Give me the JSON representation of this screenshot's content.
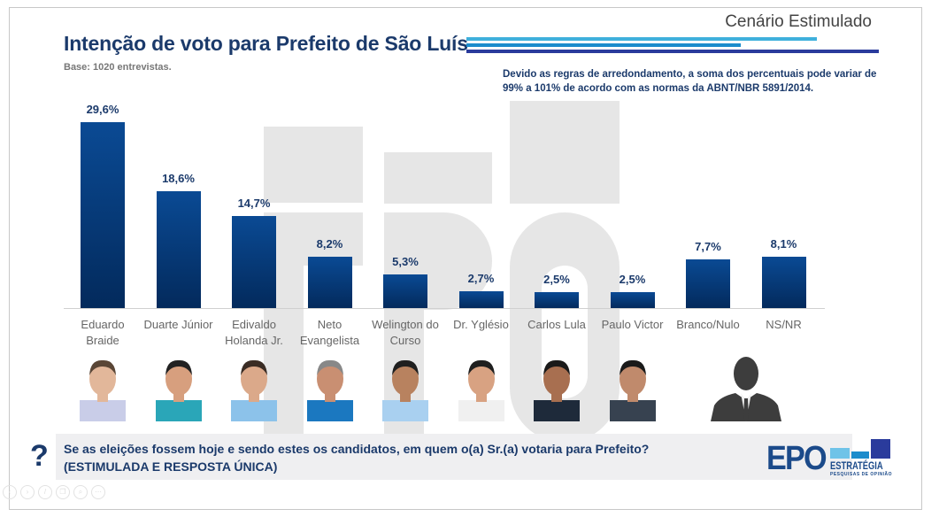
{
  "header": {
    "title": "Intenção de voto para Prefeito de São Luís",
    "scenario": "Cenário Estimulado",
    "base": "Base: 1020 entrevistas.",
    "note": "Devido as regras de arredondamento, a soma dos percentuais pode variar de 99% a 101% de acordo com as normas da ABNT/NBR 5891/2014."
  },
  "colors": {
    "title": "#1b3a6b",
    "bar_top": "#0a4a94",
    "bar_bottom": "#032a5c",
    "line_light": "#3fb0dc",
    "line_mid": "#1c8ccc",
    "line_dark": "#2a3b9c"
  },
  "chart_data": {
    "type": "bar",
    "title": "Intenção de voto para Prefeito de São Luís",
    "xlabel": "",
    "ylabel": "",
    "ylim": [
      0,
      30
    ],
    "grid": false,
    "categories": [
      "Eduardo Braide",
      "Duarte Júnior",
      "Edivaldo Holanda Jr.",
      "Neto Evangelista",
      "Welington do Curso",
      "Dr. Yglésio",
      "Carlos Lula",
      "Paulo Victor",
      "Branco/Nulo",
      "NS/NR"
    ],
    "values": [
      29.6,
      18.6,
      14.7,
      8.2,
      5.3,
      2.7,
      2.5,
      2.5,
      7.7,
      8.1
    ],
    "labels": [
      "29,6%",
      "18,6%",
      "14,7%",
      "8,2%",
      "5,3%",
      "2,7%",
      "2,5%",
      "2,5%",
      "7,7%",
      "8,1%"
    ],
    "category_lines": [
      [
        "Eduardo",
        "Braide"
      ],
      [
        "Duarte Júnior"
      ],
      [
        "Edivaldo",
        "Holanda Jr."
      ],
      [
        "Neto",
        "Evangelista"
      ],
      [
        "Welington do",
        "Curso"
      ],
      [
        "Dr. Yglésio"
      ],
      [
        "Carlos Lula"
      ],
      [
        "Paulo Victor"
      ],
      [
        "Branco/Nulo"
      ],
      [
        "NS/NR"
      ]
    ]
  },
  "photos": [
    {
      "name": "Eduardo Braide",
      "shirt": "#c9cde8",
      "hair": "#5a4636",
      "skin": "#e2b79a"
    },
    {
      "name": "Duarte Júnior",
      "shirt": "#2aa6b8",
      "hair": "#222",
      "skin": "#d79f7e"
    },
    {
      "name": "Edivaldo Holanda Jr.",
      "shirt": "#8cc2ea",
      "hair": "#3a2c24",
      "skin": "#dba98a"
    },
    {
      "name": "Neto Evangelista",
      "shirt": "#1b78c0",
      "hair": "#888",
      "skin": "#c98f72"
    },
    {
      "name": "Welington do Curso",
      "shirt": "#a9d0f0",
      "hair": "#1f1f1f",
      "skin": "#b8825f"
    },
    {
      "name": "Dr. Yglésio",
      "shirt": "#f0f0f0",
      "hair": "#1f1f1f",
      "skin": "#d8a282"
    },
    {
      "name": "Carlos Lula",
      "shirt": "#1e2a3a",
      "hair": "#1a1a1a",
      "skin": "#a86f50"
    },
    {
      "name": "Paulo Victor",
      "shirt": "#374250",
      "hair": "#1a1a1a",
      "skin": "#c08a6c"
    },
    {
      "name": "Branco/Nulo",
      "silhouette": true
    }
  ],
  "question": {
    "mark": "?",
    "line1": "Se as eleições fossem hoje e sendo estes os candidatos, em quem o(a) Sr.(a) votaria para Prefeito?",
    "line2": "(ESTIMULADA E RESPOSTA ÚNICA)"
  },
  "logo": {
    "main": "EPO",
    "sub": "ESTRATÉGIA",
    "tagline": "PESQUISAS DE OPINIÃO"
  },
  "controls": [
    "prev-icon",
    "next-icon",
    "pen-icon",
    "copy-icon",
    "zoom-icon",
    "more-icon"
  ]
}
